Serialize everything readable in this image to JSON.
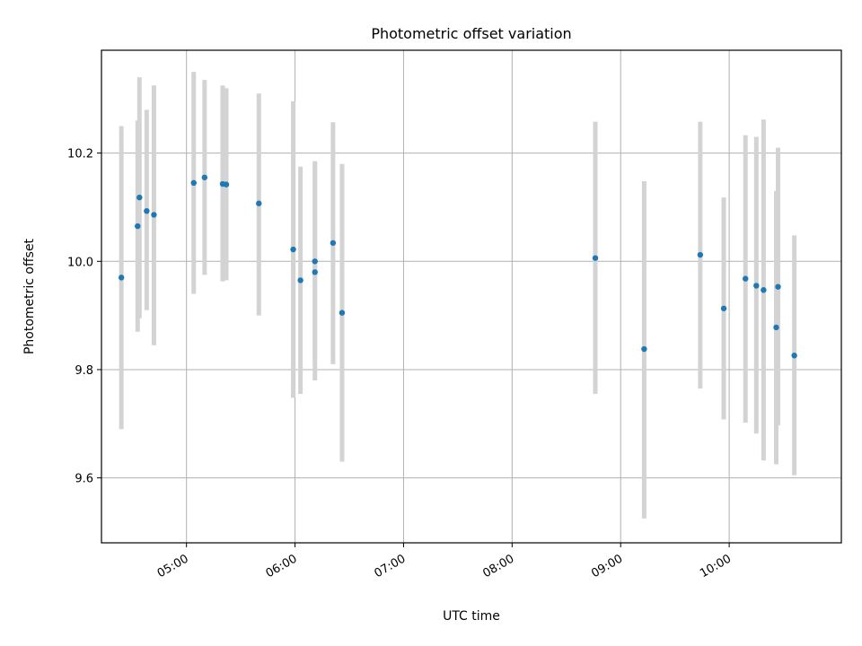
{
  "chart_data": {
    "type": "scatter",
    "title": "Photometric offset variation",
    "xlabel": "UTC time",
    "ylabel": "Photometric offset",
    "xlim": [
      "04:13",
      "11:02"
    ],
    "ylim": [
      9.48,
      10.39
    ],
    "x_ticks": [
      "05:00",
      "06:00",
      "07:00",
      "08:00",
      "09:00",
      "10:00"
    ],
    "y_ticks": [
      9.6,
      9.8,
      10.0,
      10.2
    ],
    "y_tick_labels": [
      "9.6",
      "9.8",
      "10.0",
      "10.2"
    ],
    "grid": true,
    "colors": {
      "point": "#1f77b4",
      "errorbar": "#d3d3d3",
      "grid": "#b0b0b0"
    },
    "points": [
      {
        "x": "04:24",
        "y": 9.97,
        "yerr_low": 9.69,
        "yerr_high": 10.25
      },
      {
        "x": "04:33",
        "y": 10.065,
        "yerr_low": 9.87,
        "yerr_high": 10.26
      },
      {
        "x": "04:34",
        "y": 10.118,
        "yerr_low": 9.895,
        "yerr_high": 10.34
      },
      {
        "x": "04:38",
        "y": 10.093,
        "yerr_low": 9.91,
        "yerr_high": 10.28
      },
      {
        "x": "04:42",
        "y": 10.086,
        "yerr_low": 9.845,
        "yerr_high": 10.325
      },
      {
        "x": "05:04",
        "y": 10.145,
        "yerr_low": 9.94,
        "yerr_high": 10.35
      },
      {
        "x": "05:10",
        "y": 10.155,
        "yerr_low": 9.975,
        "yerr_high": 10.335
      },
      {
        "x": "05:20",
        "y": 10.143,
        "yerr_low": 9.963,
        "yerr_high": 10.325
      },
      {
        "x": "05:22",
        "y": 10.142,
        "yerr_low": 9.965,
        "yerr_high": 10.32
      },
      {
        "x": "05:40",
        "y": 10.107,
        "yerr_low": 9.9,
        "yerr_high": 10.31
      },
      {
        "x": "05:59",
        "y": 10.022,
        "yerr_low": 9.748,
        "yerr_high": 10.296
      },
      {
        "x": "06:03",
        "y": 9.965,
        "yerr_low": 9.755,
        "yerr_high": 10.175
      },
      {
        "x": "06:11",
        "y": 10.0,
        "yerr_low": 9.82,
        "yerr_high": 10.185
      },
      {
        "x": "06:11",
        "y": 9.98,
        "yerr_low": 9.78,
        "yerr_high": 10.18
      },
      {
        "x": "06:21",
        "y": 10.034,
        "yerr_low": 9.81,
        "yerr_high": 10.257
      },
      {
        "x": "06:26",
        "y": 9.905,
        "yerr_low": 9.63,
        "yerr_high": 10.18
      },
      {
        "x": "08:46",
        "y": 10.006,
        "yerr_low": 9.755,
        "yerr_high": 10.258
      },
      {
        "x": "09:13",
        "y": 9.838,
        "yerr_low": 9.525,
        "yerr_high": 10.148
      },
      {
        "x": "09:44",
        "y": 10.012,
        "yerr_low": 9.765,
        "yerr_high": 10.258
      },
      {
        "x": "09:57",
        "y": 9.913,
        "yerr_low": 9.708,
        "yerr_high": 10.118
      },
      {
        "x": "10:09",
        "y": 9.968,
        "yerr_low": 9.702,
        "yerr_high": 10.233
      },
      {
        "x": "10:15",
        "y": 9.955,
        "yerr_low": 9.682,
        "yerr_high": 10.23
      },
      {
        "x": "10:19",
        "y": 9.947,
        "yerr_low": 9.632,
        "yerr_high": 10.262
      },
      {
        "x": "10:26",
        "y": 9.878,
        "yerr_low": 9.625,
        "yerr_high": 10.13
      },
      {
        "x": "10:27",
        "y": 9.953,
        "yerr_low": 9.697,
        "yerr_high": 10.21
      },
      {
        "x": "10:36",
        "y": 9.826,
        "yerr_low": 9.605,
        "yerr_high": 10.048
      }
    ]
  }
}
